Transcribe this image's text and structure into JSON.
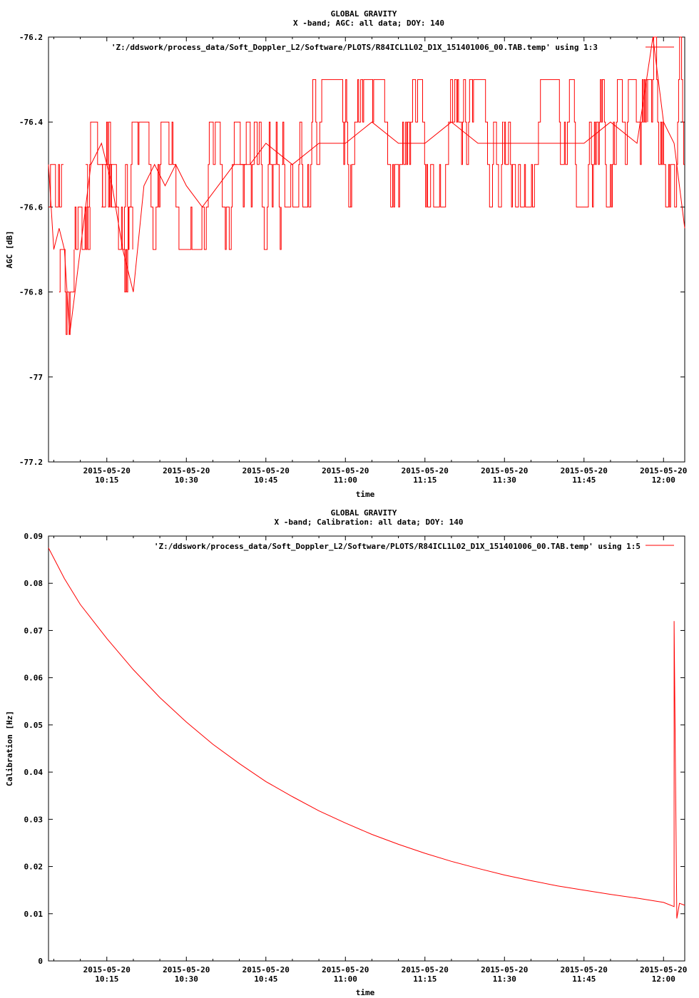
{
  "chart_data": [
    {
      "type": "line",
      "title": "GLOBAL GRAVITY",
      "subtitle": "X -band; AGC: all data; DOY: 140",
      "xlabel": "time",
      "ylabel": "AGC [dB]",
      "ylim": [
        -77.2,
        -76.2
      ],
      "yticks": [
        -76.2,
        -76.4,
        -76.6,
        -76.8,
        -77,
        -77.2
      ],
      "ytick_labels": [
        "-76.2",
        "-76.4",
        "-76.6",
        "-76.8",
        "-77",
        "-77.2"
      ],
      "xlim": [
        "2015-05-20 10:04",
        "2015-05-20 12:04"
      ],
      "xticks": [
        "2015-05-20 10:15",
        "2015-05-20 10:30",
        "2015-05-20 10:45",
        "2015-05-20 11:00",
        "2015-05-20 11:15",
        "2015-05-20 11:30",
        "2015-05-20 11:45",
        "2015-05-20 12:00"
      ],
      "xtick_date_labels": [
        "2015-05-20",
        "2015-05-20",
        "2015-05-20",
        "2015-05-20",
        "2015-05-20",
        "2015-05-20",
        "2015-05-20",
        "2015-05-20"
      ],
      "xtick_time_labels": [
        "10:15",
        "10:30",
        "10:45",
        "11:00",
        "11:15",
        "11:30",
        "11:45",
        "12:00"
      ],
      "legend_position": "top-right",
      "series": [
        {
          "name": "'Z:/ddswork/process_data/Soft_Doppler_L2/Software/PLOTS/R84ICL1L02_D1X_151401006_00.TAB.temp' using 1:3",
          "color": "#ff0000",
          "x": [
            "10:04",
            "10:05",
            "10:06",
            "10:07",
            "10:08",
            "10:09",
            "10:10",
            "10:11",
            "10:12",
            "10:14",
            "10:16",
            "10:18",
            "10:20",
            "10:22",
            "10:24",
            "10:26",
            "10:28",
            "10:30",
            "10:33",
            "10:36",
            "10:39",
            "10:42",
            "10:45",
            "10:50",
            "10:55",
            "11:00",
            "11:05",
            "11:10",
            "11:15",
            "11:20",
            "11:25",
            "11:30",
            "11:35",
            "11:40",
            "11:45",
            "11:50",
            "11:55",
            "11:58",
            "12:00",
            "12:02",
            "12:04"
          ],
          "values": [
            -76.5,
            -76.7,
            -76.65,
            -76.7,
            -76.9,
            -76.8,
            -76.7,
            -76.6,
            -76.5,
            -76.45,
            -76.55,
            -76.7,
            -76.8,
            -76.55,
            -76.5,
            -76.55,
            -76.5,
            -76.55,
            -76.6,
            -76.55,
            -76.5,
            -76.5,
            -76.45,
            -76.5,
            -76.45,
            -76.45,
            -76.4,
            -76.45,
            -76.45,
            -76.4,
            -76.45,
            -76.45,
            -76.45,
            -76.45,
            -76.45,
            -76.4,
            -76.45,
            -76.2,
            -76.4,
            -76.45,
            -76.65
          ],
          "bands": [
            {
              "from": "10:04",
              "to": "10:07",
              "low": -76.7,
              "high": -76.5
            },
            {
              "from": "10:06",
              "to": "10:09",
              "low": -76.9,
              "high": -76.7
            },
            {
              "from": "10:09",
              "to": "10:12",
              "low": -76.7,
              "high": -76.6
            },
            {
              "from": "10:11",
              "to": "10:17",
              "low": -76.6,
              "high": -76.4
            },
            {
              "from": "10:14",
              "to": "10:19",
              "low": -76.7,
              "high": -76.5
            },
            {
              "from": "10:18",
              "to": "10:20",
              "low": -76.8,
              "high": -76.6
            },
            {
              "from": "10:19",
              "to": "10:33",
              "low": -76.7,
              "high": -76.4
            },
            {
              "from": "10:33",
              "to": "10:48",
              "low": -76.7,
              "high": -76.4
            },
            {
              "from": "10:48",
              "to": "11:01",
              "low": -76.6,
              "high": -76.3
            },
            {
              "from": "11:01",
              "to": "11:30",
              "low": -76.6,
              "high": -76.3
            },
            {
              "from": "11:30",
              "to": "11:57",
              "low": -76.6,
              "high": -76.3
            },
            {
              "from": "11:57",
              "to": "12:04",
              "low": -76.6,
              "high": -76.2
            }
          ]
        }
      ]
    },
    {
      "type": "line",
      "title": "GLOBAL GRAVITY",
      "subtitle": "X -band; Calibration: all data; DOY: 140",
      "xlabel": "time",
      "ylabel": "Calibration [Hz]",
      "ylim": [
        0,
        0.09
      ],
      "yticks": [
        0,
        0.01,
        0.02,
        0.03,
        0.04,
        0.05,
        0.06,
        0.07,
        0.08,
        0.09
      ],
      "ytick_labels": [
        "0",
        "0.01",
        "0.02",
        "0.03",
        "0.04",
        "0.05",
        "0.06",
        "0.07",
        "0.08",
        "0.09"
      ],
      "xlim": [
        "2015-05-20 10:04",
        "2015-05-20 12:04"
      ],
      "xticks": [
        "2015-05-20 10:15",
        "2015-05-20 10:30",
        "2015-05-20 10:45",
        "2015-05-20 11:00",
        "2015-05-20 11:15",
        "2015-05-20 11:30",
        "2015-05-20 11:45",
        "2015-05-20 12:00"
      ],
      "xtick_date_labels": [
        "2015-05-20",
        "2015-05-20",
        "2015-05-20",
        "2015-05-20",
        "2015-05-20",
        "2015-05-20",
        "2015-05-20",
        "2015-05-20"
      ],
      "xtick_time_labels": [
        "10:15",
        "10:30",
        "10:45",
        "11:00",
        "11:15",
        "11:30",
        "11:45",
        "12:00"
      ],
      "legend_position": "top-right",
      "series": [
        {
          "name": "'Z:/ddswork/process_data/Soft_Doppler_L2/Software/PLOTS/R84ICL1L02_D1X_151401006_00.TAB.temp' using 1:5",
          "color": "#ff0000",
          "x": [
            "10:04",
            "10:07",
            "10:10",
            "10:15",
            "10:20",
            "10:25",
            "10:30",
            "10:35",
            "10:40",
            "10:45",
            "10:50",
            "10:55",
            "11:00",
            "11:05",
            "11:10",
            "11:15",
            "11:20",
            "11:25",
            "11:30",
            "11:35",
            "11:40",
            "11:45",
            "11:50",
            "11:55",
            "12:00",
            "12:02",
            "12:02",
            "12:02.5",
            "12:03",
            "12:04"
          ],
          "values": [
            0.0875,
            0.081,
            0.0755,
            0.0683,
            0.0617,
            0.0558,
            0.0506,
            0.0459,
            0.0418,
            0.038,
            0.0348,
            0.0318,
            0.0292,
            0.0268,
            0.0247,
            0.0228,
            0.0211,
            0.0196,
            0.0182,
            0.017,
            0.0159,
            0.015,
            0.0141,
            0.0133,
            0.0124,
            0.0115,
            0.072,
            0.009,
            0.0122,
            0.0118
          ]
        }
      ]
    }
  ]
}
